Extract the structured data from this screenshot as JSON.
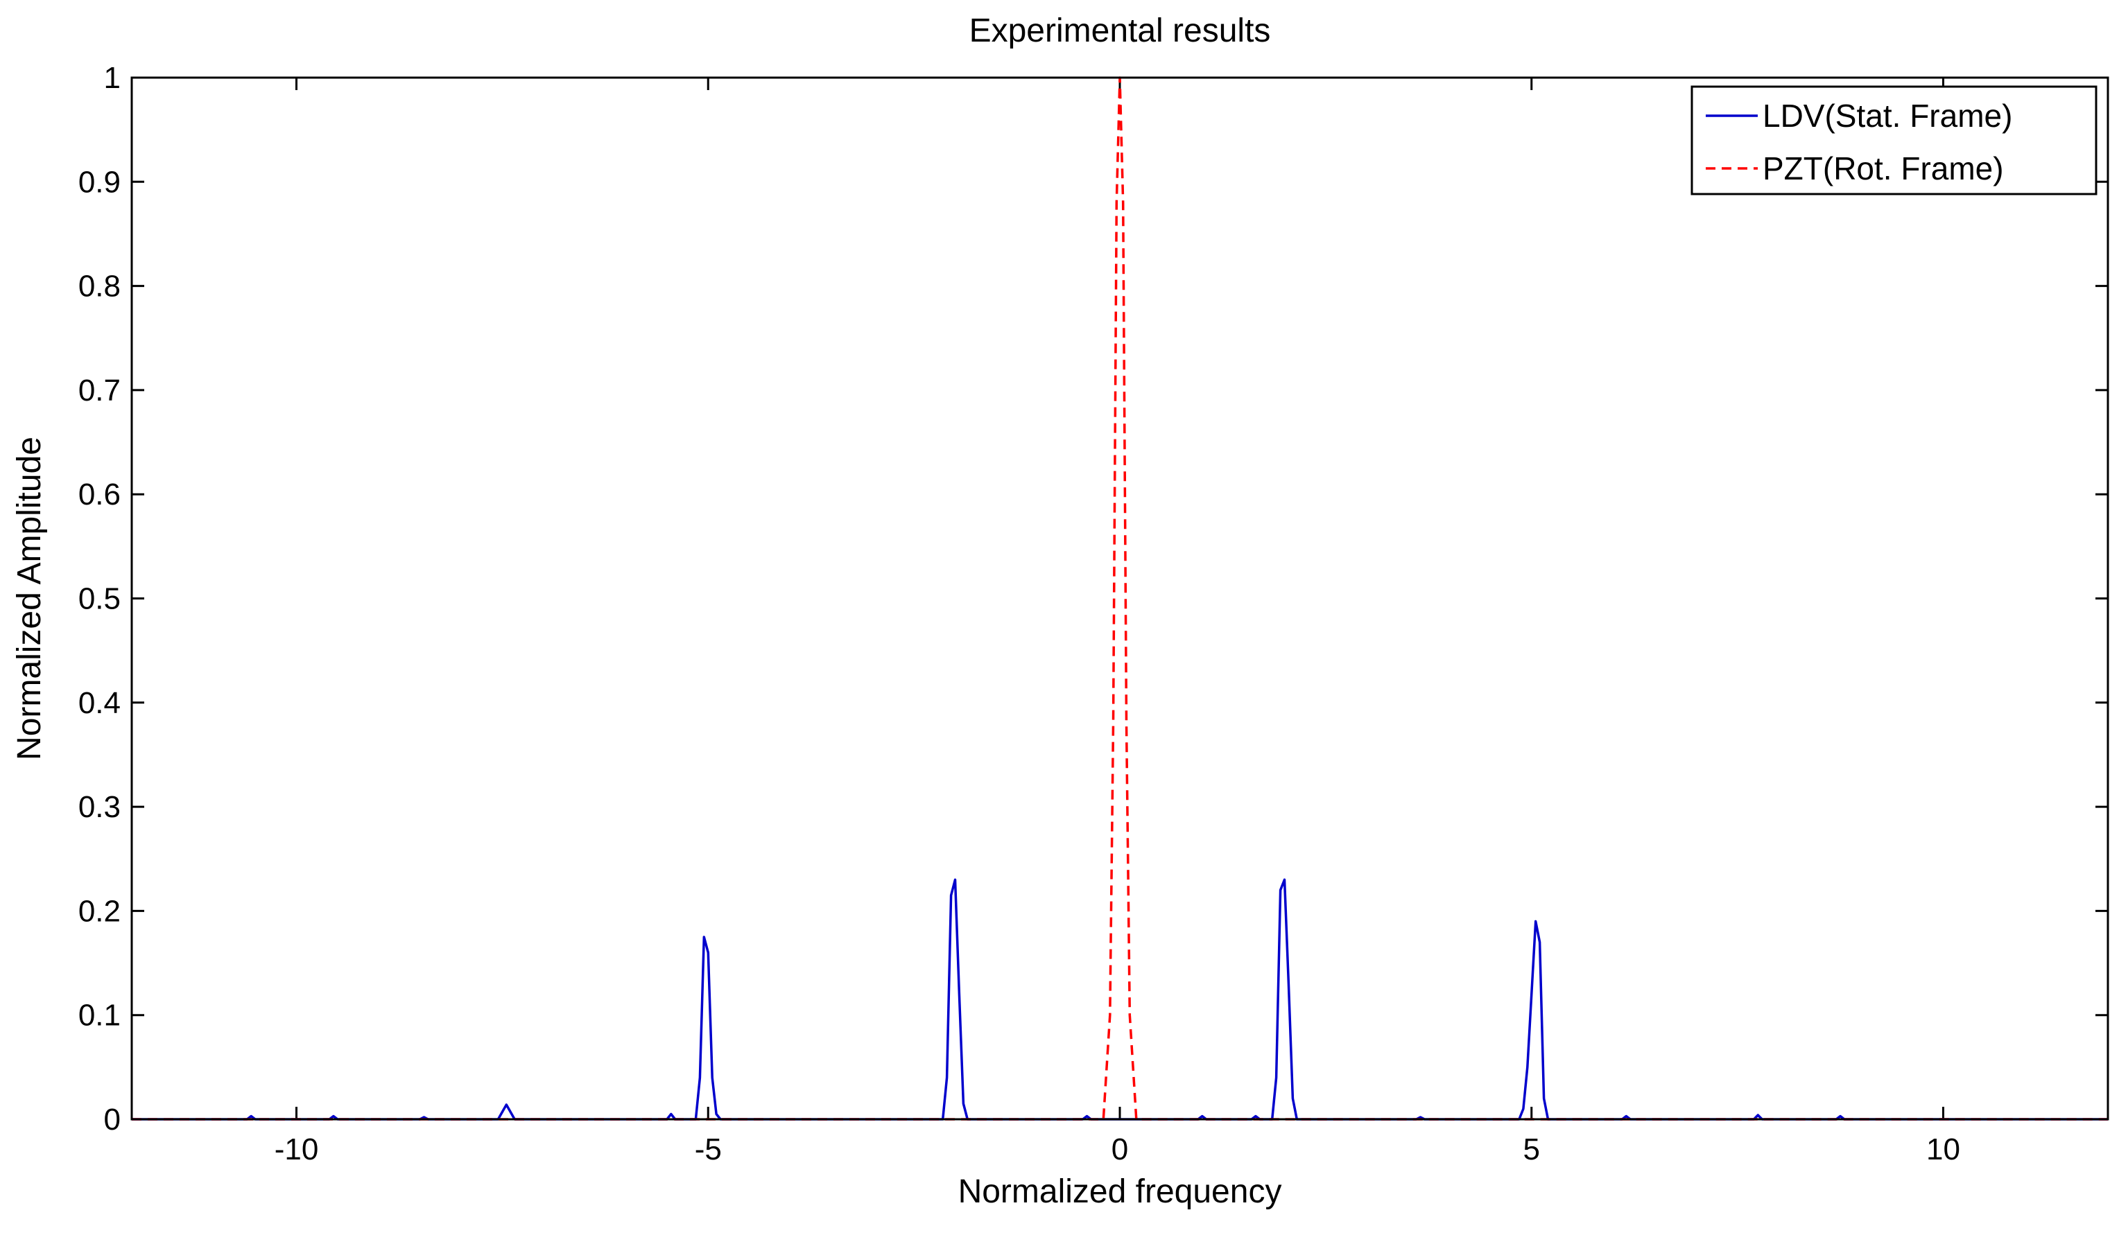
{
  "chart_data": {
    "type": "line",
    "title": "Experimental results",
    "xlabel": "Normalized frequency",
    "ylabel": "Normalized Amplitude",
    "xlim": [
      -12,
      12
    ],
    "ylim": [
      0,
      1
    ],
    "x_ticks": [
      -10,
      -5,
      0,
      5,
      10
    ],
    "x_tick_labels": [
      "-10",
      "-5",
      "0",
      "5",
      "10"
    ],
    "y_ticks": [
      0,
      0.1,
      0.2,
      0.3,
      0.4,
      0.5,
      0.6,
      0.7,
      0.8,
      0.9,
      1
    ],
    "y_tick_labels": [
      "0",
      "0.1",
      "0.2",
      "0.3",
      "0.4",
      "0.5",
      "0.6",
      "0.7",
      "0.8",
      "0.9",
      "1"
    ],
    "grid": false,
    "legend_position": "top-right",
    "series": [
      {
        "name": "LDV(Stat. Frame)",
        "color": "#0000cc",
        "dash": "solid",
        "x": [
          -12,
          -10.6,
          -10.55,
          -10.5,
          -9.6,
          -9.55,
          -9.5,
          -8.5,
          -8.45,
          -8.4,
          -7.55,
          -7.45,
          -7.35,
          -5.5,
          -5.45,
          -5.4,
          -5.15,
          -5.1,
          -5.05,
          -5.0,
          -4.95,
          -4.9,
          -4.85,
          -2.15,
          -2.1,
          -2.05,
          -2.0,
          -1.95,
          -1.9,
          -1.85,
          -0.45,
          -0.4,
          -0.35,
          0.95,
          1.0,
          1.05,
          1.6,
          1.65,
          1.7,
          1.85,
          1.9,
          1.95,
          2.0,
          2.05,
          2.1,
          2.15,
          3.6,
          3.65,
          3.7,
          4.85,
          4.9,
          4.95,
          5.05,
          5.1,
          5.15,
          5.2,
          6.1,
          6.15,
          6.2,
          7.7,
          7.75,
          7.8,
          8.7,
          8.75,
          8.8,
          12
        ],
        "y": [
          0,
          0,
          0.003,
          0,
          0,
          0.003,
          0,
          0,
          0.002,
          0,
          0,
          0.014,
          0,
          0,
          0.005,
          0,
          0,
          0.04,
          0.175,
          0.16,
          0.04,
          0.005,
          0,
          0,
          0.04,
          0.215,
          0.23,
          0.12,
          0.015,
          0,
          0,
          0.003,
          0,
          0,
          0.003,
          0,
          0,
          0.003,
          0,
          0,
          0.04,
          0.22,
          0.23,
          0.13,
          0.02,
          0,
          0,
          0.002,
          0,
          0,
          0.01,
          0.05,
          0.19,
          0.17,
          0.02,
          0,
          0,
          0.003,
          0,
          0,
          0.004,
          0,
          0,
          0.003,
          0,
          0
        ]
      },
      {
        "name": "PZT(Rot. Frame)",
        "color": "#ff0000",
        "dash": "dashed",
        "x": [
          -12,
          -0.2,
          -0.12,
          -0.08,
          -0.04,
          0.0,
          0.04,
          0.08,
          0.12,
          0.2,
          12
        ],
        "y": [
          0,
          0,
          0.1,
          0.38,
          0.88,
          1.0,
          0.88,
          0.38,
          0.1,
          0,
          0
        ]
      }
    ]
  }
}
